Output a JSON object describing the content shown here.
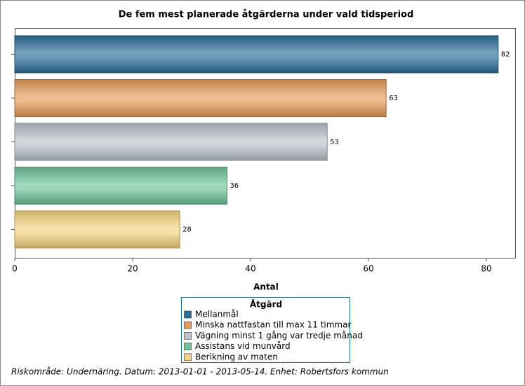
{
  "chart_data": {
    "type": "bar",
    "orientation": "horizontal",
    "title": "De fem mest planerade åtgärderna under vald tidsperiod",
    "x_label": "Antal",
    "legend_title": "Åtgärd",
    "categories": [
      "Mellanmål",
      "Minska nattfastan till max 11 timmar",
      "Vägning minst 1 gång var tredje månad",
      "Assistans vid munvård",
      "Berikning av maten"
    ],
    "values": [
      82,
      63,
      53,
      36,
      28
    ],
    "colors": [
      "#2b6e98",
      "#e39b57",
      "#b8c2c8",
      "#6cc39a",
      "#f2d27f"
    ],
    "xlim": [
      0,
      85
    ],
    "xticks": [
      0,
      20,
      40,
      60,
      80
    ],
    "footnote": "Riskområde: Undernäring. Datum: 2013-01-01 - 2013-05-14. Enhet: Robertsfors kommun"
  }
}
